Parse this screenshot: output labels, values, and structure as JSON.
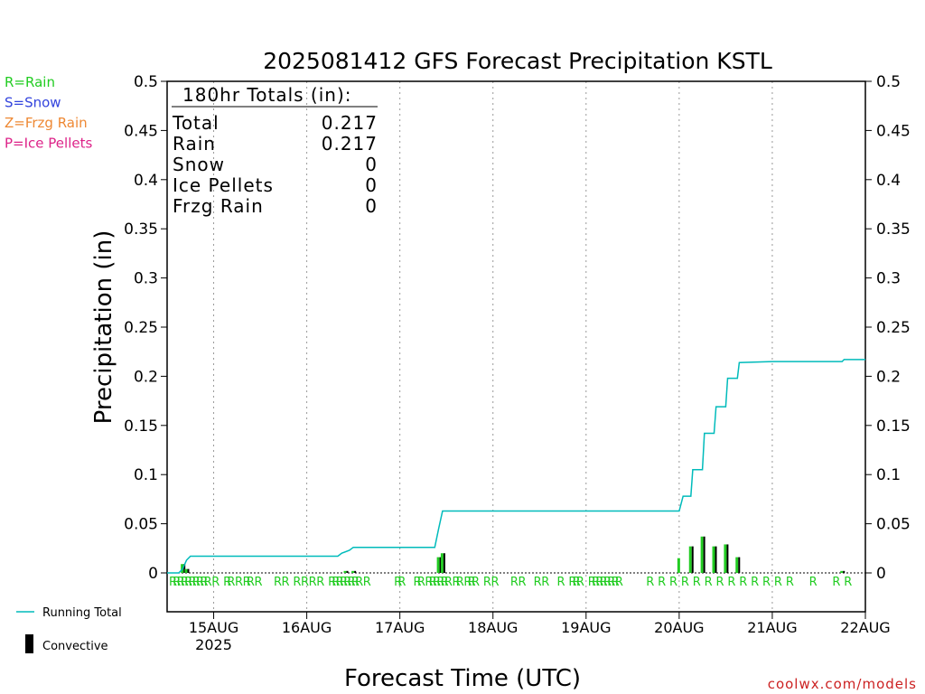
{
  "chart_data": {
    "type": "bar",
    "title": "2025081412 GFS Forecast Precipitation KSTL",
    "ylabel": "Precipitation (in)",
    "xlabel": "Forecast Time (UTC)",
    "ylim": [
      0,
      0.5
    ],
    "yticks": [
      "0",
      "0.05",
      "0.1",
      "0.15",
      "0.2",
      "0.25",
      "0.3",
      "0.35",
      "0.4",
      "0.45",
      "0.5"
    ],
    "x_start": "2025-08-14 12:00 UTC",
    "x_end": "2025-08-22 00:00 UTC",
    "xticks": [
      {
        "label": "15AUG",
        "sub": "2025",
        "date": "2025-08-15 00:00"
      },
      {
        "label": "16AUG",
        "sub": "",
        "date": "2025-08-16 00:00"
      },
      {
        "label": "17AUG",
        "sub": "",
        "date": "2025-08-17 00:00"
      },
      {
        "label": "18AUG",
        "sub": "",
        "date": "2025-08-18 00:00"
      },
      {
        "label": "19AUG",
        "sub": "",
        "date": "2025-08-19 00:00"
      },
      {
        "label": "20AUG",
        "sub": "",
        "date": "2025-08-20 00:00"
      },
      {
        "label": "21AUG",
        "sub": "",
        "date": "2025-08-21 00:00"
      },
      {
        "label": "22AUG",
        "sub": "",
        "date": "2025-08-22 00:00"
      }
    ],
    "grid": "vertical dotted at day boundaries",
    "legend_types": [
      {
        "text": "R=Rain",
        "color": "#22cc22"
      },
      {
        "text": "S=Snow",
        "color": "#3344dd"
      },
      {
        "text": "Z=Frzg Rain",
        "color": "#ee8833"
      },
      {
        "text": "P=Ice Pellets",
        "color": "#dd2288"
      }
    ],
    "legend_series": [
      {
        "text": "Running Total",
        "color": "#00bbbb"
      },
      {
        "text": "Convective",
        "color": "#000000"
      }
    ],
    "totals": {
      "header": "180hr Totals (in):",
      "rows": [
        {
          "label": "Total",
          "value": "0.217"
        },
        {
          "label": "Rain",
          "value": "0.217"
        },
        {
          "label": "Snow",
          "value": "0"
        },
        {
          "label": "Ice Pellets",
          "value": "0"
        },
        {
          "label": "Frzg Rain",
          "value": "0"
        }
      ]
    },
    "running_total": [
      {
        "t": "2025-08-14 12:00",
        "v": 0.0
      },
      {
        "t": "2025-08-14 15:00",
        "v": 0.0
      },
      {
        "t": "2025-08-14 16:00",
        "v": 0.004
      },
      {
        "t": "2025-08-14 17:00",
        "v": 0.013
      },
      {
        "t": "2025-08-14 18:00",
        "v": 0.017
      },
      {
        "t": "2025-08-16 08:00",
        "v": 0.017
      },
      {
        "t": "2025-08-16 09:00",
        "v": 0.02
      },
      {
        "t": "2025-08-16 11:00",
        "v": 0.023
      },
      {
        "t": "2025-08-16 12:00",
        "v": 0.026
      },
      {
        "t": "2025-08-17 09:00",
        "v": 0.026
      },
      {
        "t": "2025-08-17 10:00",
        "v": 0.045
      },
      {
        "t": "2025-08-17 11:00",
        "v": 0.063
      },
      {
        "t": "2025-08-20 00:00",
        "v": 0.063
      },
      {
        "t": "2025-08-20 01:00",
        "v": 0.078
      },
      {
        "t": "2025-08-20 03:00",
        "v": 0.078
      },
      {
        "t": "2025-08-20 03:30",
        "v": 0.105
      },
      {
        "t": "2025-08-20 06:00",
        "v": 0.105
      },
      {
        "t": "2025-08-20 06:30",
        "v": 0.142
      },
      {
        "t": "2025-08-20 09:00",
        "v": 0.142
      },
      {
        "t": "2025-08-20 09:30",
        "v": 0.169
      },
      {
        "t": "2025-08-20 12:00",
        "v": 0.169
      },
      {
        "t": "2025-08-20 12:30",
        "v": 0.198
      },
      {
        "t": "2025-08-20 15:00",
        "v": 0.198
      },
      {
        "t": "2025-08-20 15:30",
        "v": 0.214
      },
      {
        "t": "2025-08-21 00:00",
        "v": 0.215
      },
      {
        "t": "2025-08-21 12:00",
        "v": 0.215
      },
      {
        "t": "2025-08-21 18:00",
        "v": 0.215
      },
      {
        "t": "2025-08-21 18:30",
        "v": 0.217
      },
      {
        "t": "2025-08-22 00:00",
        "v": 0.217
      }
    ],
    "precip_bars": [
      {
        "t": "2025-08-14 16:00",
        "total": 0.009,
        "convective": 0.009
      },
      {
        "t": "2025-08-14 17:00",
        "total": 0.004,
        "convective": 0.004
      },
      {
        "t": "2025-08-16 10:00",
        "total": 0.002,
        "convective": 0.002
      },
      {
        "t": "2025-08-16 12:00",
        "total": 0.002,
        "convective": 0.002
      },
      {
        "t": "2025-08-17 10:00",
        "total": 0.016,
        "convective": 0.016
      },
      {
        "t": "2025-08-17 11:00",
        "total": 0.02,
        "convective": 0.02
      },
      {
        "t": "2025-08-20 00:00",
        "total": 0.015,
        "convective": 0.0
      },
      {
        "t": "2025-08-20 03:00",
        "total": 0.027,
        "convective": 0.027
      },
      {
        "t": "2025-08-20 06:00",
        "total": 0.037,
        "convective": 0.037
      },
      {
        "t": "2025-08-20 09:00",
        "total": 0.027,
        "convective": 0.027
      },
      {
        "t": "2025-08-20 12:00",
        "total": 0.029,
        "convective": 0.029
      },
      {
        "t": "2025-08-20 15:00",
        "total": 0.016,
        "convective": 0.016
      },
      {
        "t": "2025-08-21 18:00",
        "total": 0.002,
        "convective": 0.002
      }
    ],
    "ptype_markers": {
      "symbol": "R",
      "times": [
        "2025-08-14 12:00",
        "2025-08-14 13:00",
        "2025-08-14 14:00",
        "2025-08-14 15:00",
        "2025-08-14 16:00",
        "2025-08-14 17:00",
        "2025-08-14 18:00",
        "2025-08-14 19:00",
        "2025-08-14 20:00",
        "2025-08-14 21:00",
        "2025-08-14 23:00",
        "2025-08-15 02:00",
        "2025-08-15 03:00",
        "2025-08-15 05:00",
        "2025-08-15 07:00",
        "2025-08-15 08:00",
        "2025-08-15 10:00",
        "2025-08-15 15:00",
        "2025-08-15 17:00",
        "2025-08-15 20:00",
        "2025-08-15 22:00",
        "2025-08-16 00:00",
        "2025-08-16 02:00",
        "2025-08-16 05:00",
        "2025-08-16 06:00",
        "2025-08-16 07:00",
        "2025-08-16 08:00",
        "2025-08-16 09:00",
        "2025-08-16 10:00",
        "2025-08-16 11:00",
        "2025-08-16 12:00",
        "2025-08-16 14:00",
        "2025-08-16 22:00",
        "2025-08-16 23:00",
        "2025-08-17 03:00",
        "2025-08-17 04:00",
        "2025-08-17 06:00",
        "2025-08-17 07:00",
        "2025-08-17 08:00",
        "2025-08-17 09:00",
        "2025-08-17 10:00",
        "2025-08-17 11:00",
        "2025-08-17 13:00",
        "2025-08-17 14:00",
        "2025-08-17 16:00",
        "2025-08-17 17:00",
        "2025-08-17 18:00",
        "2025-08-17 21:00",
        "2025-08-17 23:00",
        "2025-08-18 04:00",
        "2025-08-18 06:00",
        "2025-08-18 10:00",
        "2025-08-18 12:00",
        "2025-08-18 16:00",
        "2025-08-18 19:00",
        "2025-08-18 20:00",
        "2025-08-18 21:00",
        "2025-08-19 00:00",
        "2025-08-19 01:00",
        "2025-08-19 02:00",
        "2025-08-19 03:00",
        "2025-08-19 04:00",
        "2025-08-19 05:00",
        "2025-08-19 06:00",
        "2025-08-19 07:00",
        "2025-08-19 15:00",
        "2025-08-19 18:00",
        "2025-08-19 21:00",
        "2025-08-20 00:00",
        "2025-08-20 03:00",
        "2025-08-20 06:00",
        "2025-08-20 09:00",
        "2025-08-20 12:00",
        "2025-08-20 15:00",
        "2025-08-20 18:00",
        "2025-08-20 21:00",
        "2025-08-21 00:00",
        "2025-08-21 03:00",
        "2025-08-21 09:00",
        "2025-08-21 15:00",
        "2025-08-21 18:00"
      ],
      "color": "#22cc22"
    },
    "colors": {
      "running_total": "#00bbbb",
      "convective": "#000000",
      "rain": "#22cc22",
      "credit": "#cc2222"
    }
  },
  "credit": "coolwx.com/models"
}
